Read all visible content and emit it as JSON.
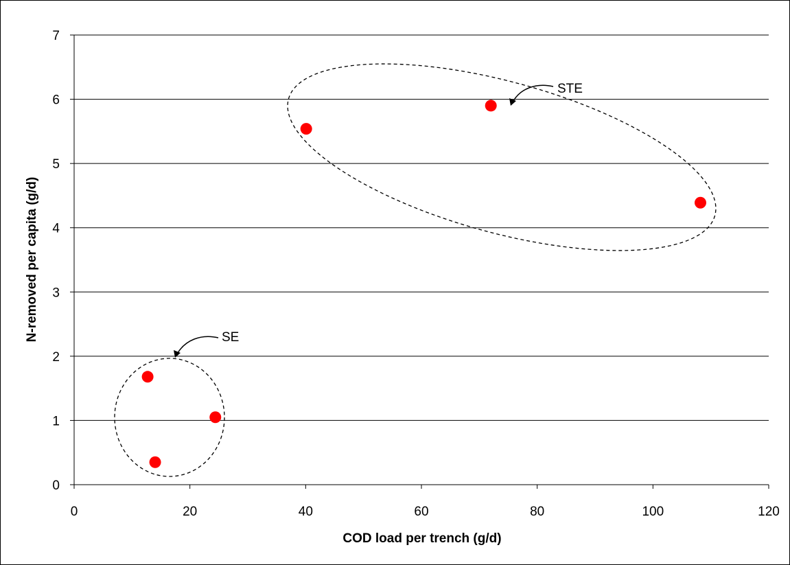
{
  "chart_data": {
    "type": "scatter",
    "title": "",
    "xlabel": "COD load per trench (g/d)",
    "ylabel": "N-removed per capita (g/d)",
    "xlim": [
      0,
      120
    ],
    "ylim": [
      0,
      7
    ],
    "x_ticks": [
      0,
      20,
      40,
      60,
      80,
      100,
      120
    ],
    "y_ticks": [
      0,
      1,
      2,
      3,
      4,
      5,
      6,
      7
    ],
    "grid": "horizontal",
    "legend": "none",
    "marker_color": "#ff0000",
    "series": [
      {
        "points": [
          {
            "x": 12.7,
            "y": 1.68
          },
          {
            "x": 14.0,
            "y": 0.35
          },
          {
            "x": 24.4,
            "y": 1.05
          },
          {
            "x": 40.1,
            "y": 5.54
          },
          {
            "x": 72.0,
            "y": 5.9
          },
          {
            "x": 108.2,
            "y": 4.39
          }
        ]
      }
    ],
    "annotations": [
      {
        "label": "SE",
        "group": [
          0,
          1,
          2
        ]
      },
      {
        "label": "STE",
        "group": [
          3,
          4,
          5
        ]
      }
    ]
  }
}
